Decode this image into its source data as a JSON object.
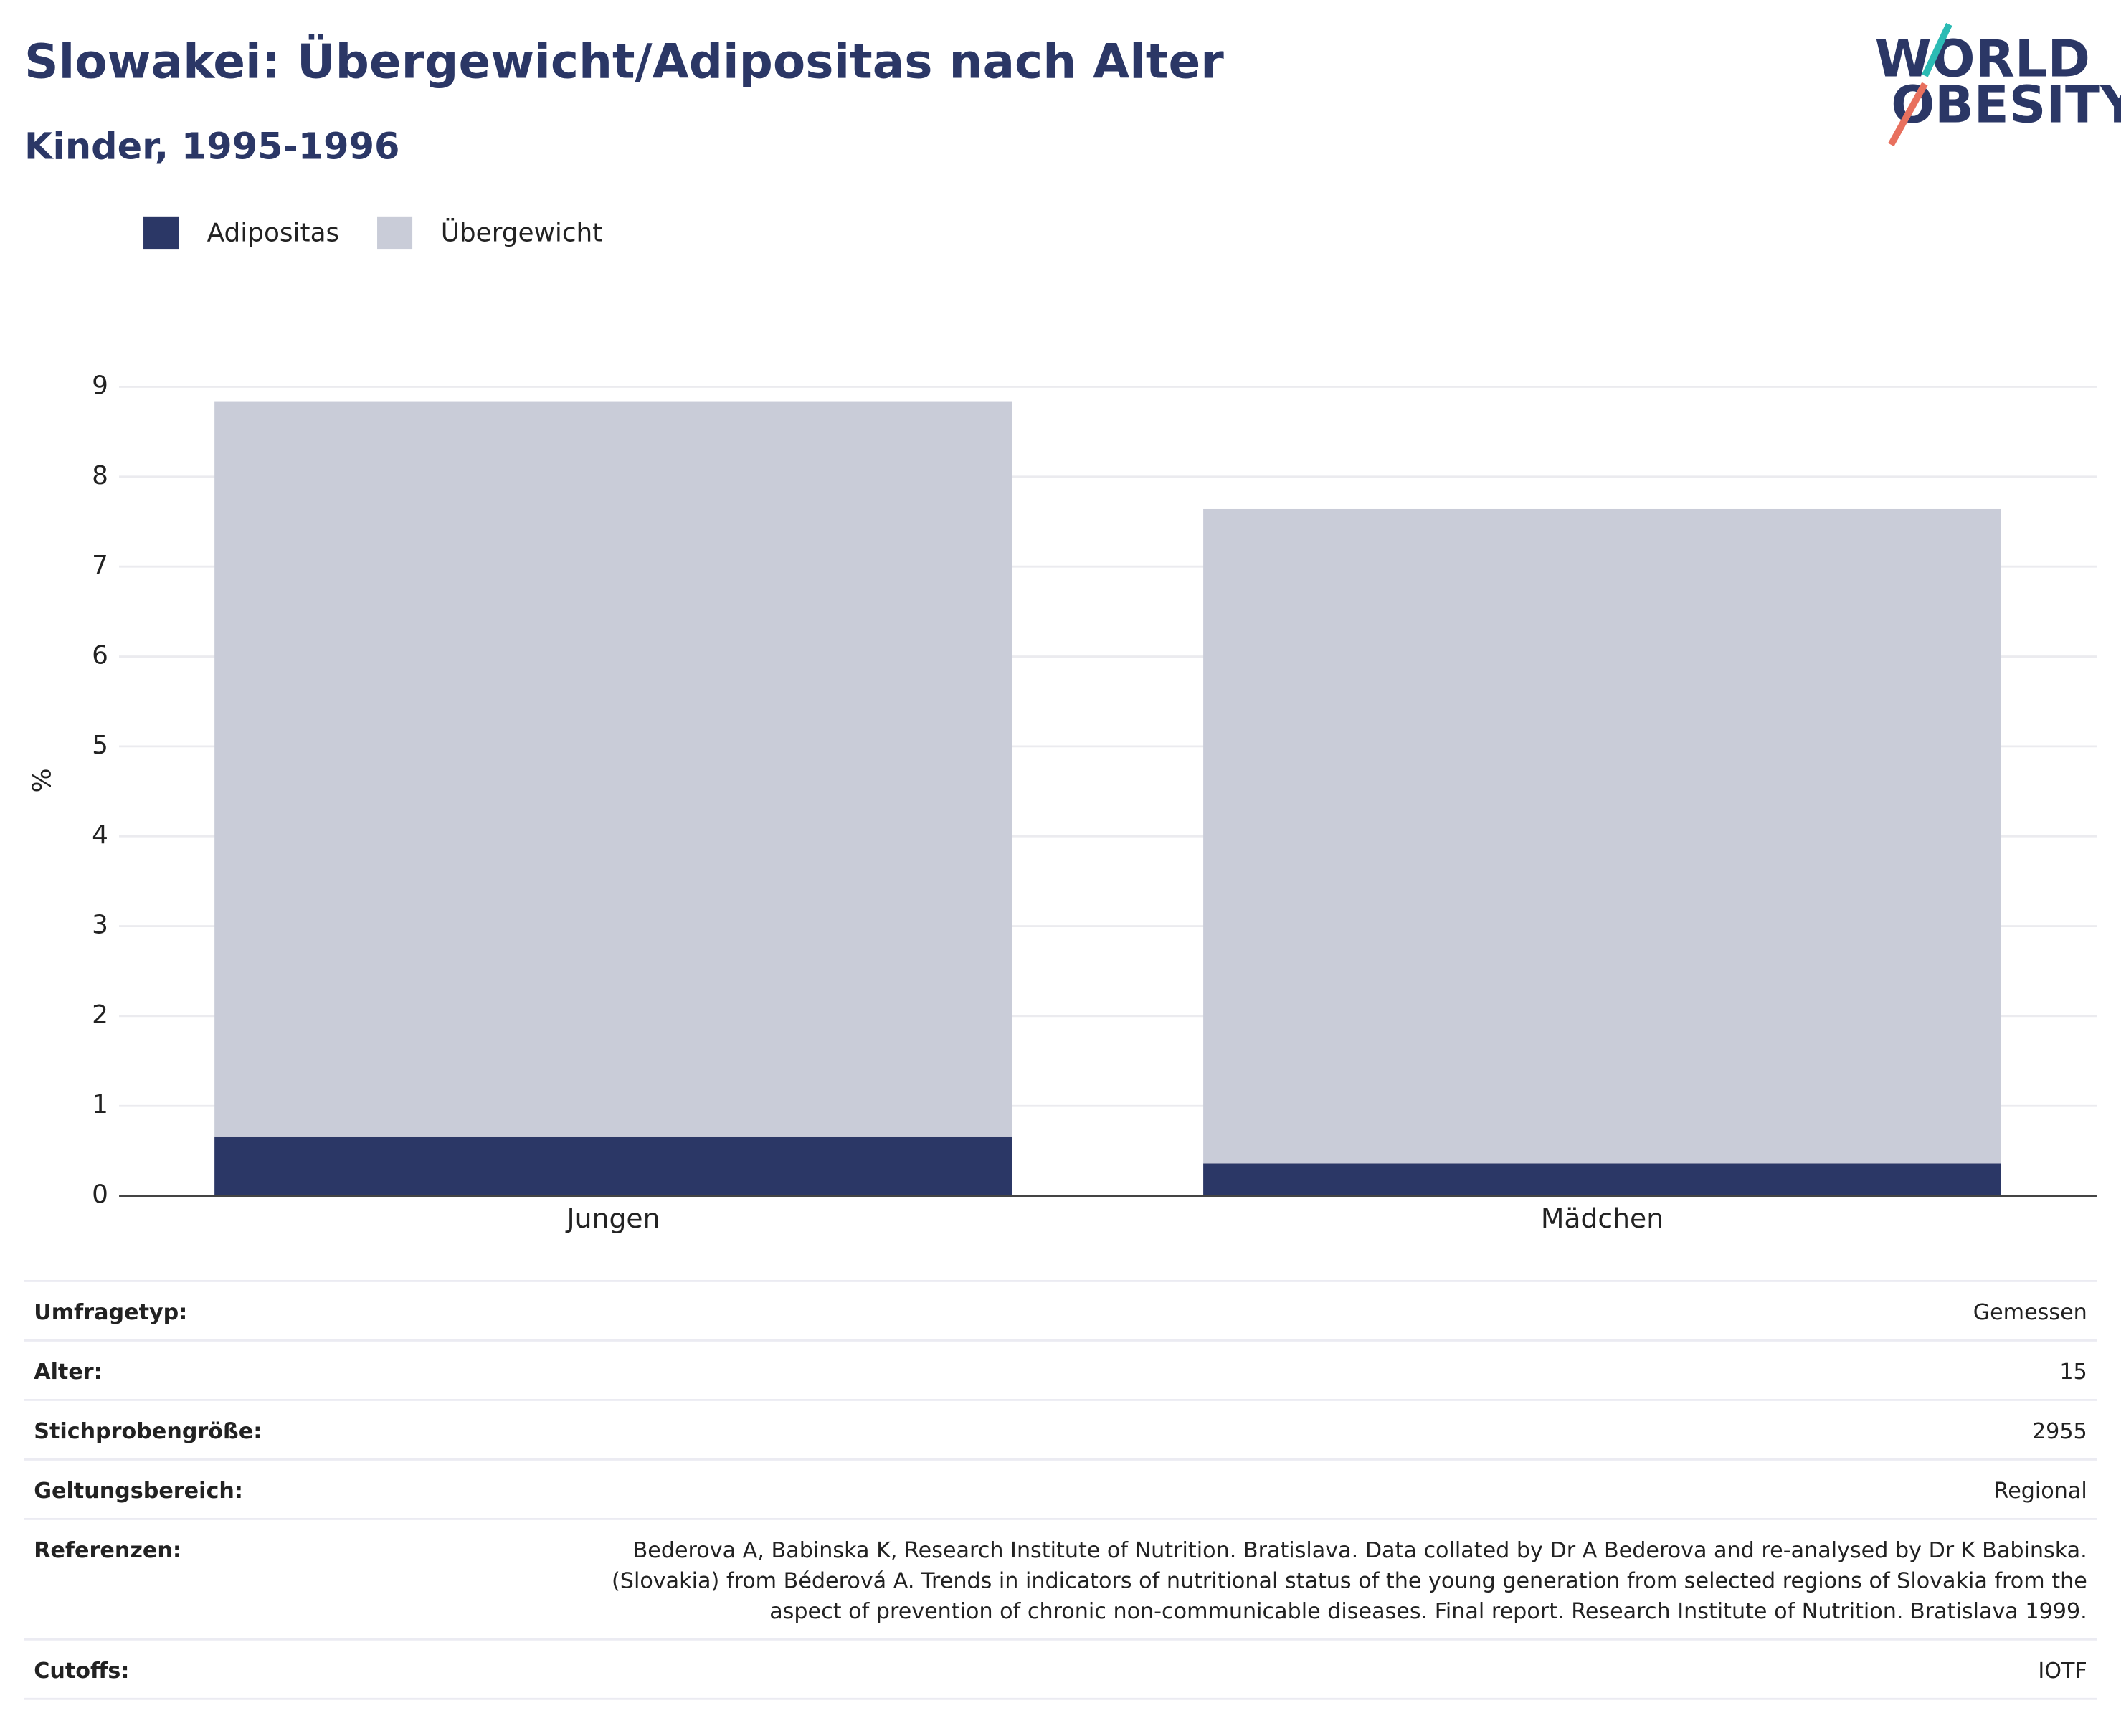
{
  "logo": [
    "WORLD",
    "OBESITY"
  ],
  "chart_data": {
    "type": "stacked_bar",
    "title": "Slowakei: Übergewicht/Adipositas nach Alter",
    "subtitle": "Kinder, 1995-1996",
    "y_label": "%",
    "categories": [
      "Jungen",
      "Mädchen"
    ],
    "series": [
      {
        "name": "Adipositas",
        "color": "#2b3766",
        "values": [
          0.66,
          0.36
        ]
      },
      {
        "name": "Übergewicht",
        "color": "#c9ccd8",
        "values": [
          8.18,
          7.28
        ]
      }
    ],
    "ylim": [
      0,
      9
    ],
    "yticks": [
      0,
      1,
      2,
      3,
      4,
      5,
      6,
      7,
      8,
      9
    ],
    "grid": true
  },
  "table": {
    "rows": [
      {
        "label": "Umfragetyp:",
        "value": [
          "Gemessen"
        ]
      },
      {
        "label": "Alter:",
        "value": [
          "15"
        ]
      },
      {
        "label": "Stichprobengröße:",
        "value": [
          "2955"
        ]
      },
      {
        "label": "Geltungsbereich:",
        "value": [
          "Regional"
        ]
      },
      {
        "label": "Referenzen:",
        "value": [
          "Bederova A, Babinska K, Research Institute of Nutrition. Bratislava. Data collated by Dr A Bederova and re-analysed by Dr K Babinska.",
          "(Slovakia) from Béderová A. Trends in indicators of nutritional status of the young generation from selected regions of Slovakia from the",
          "aspect of prevention of chronic non-communicable diseases. Final report. Research Institute of Nutrition. Bratislava 1999."
        ]
      },
      {
        "label": "Cutoffs:",
        "value": [
          "IOTF"
        ]
      }
    ]
  }
}
